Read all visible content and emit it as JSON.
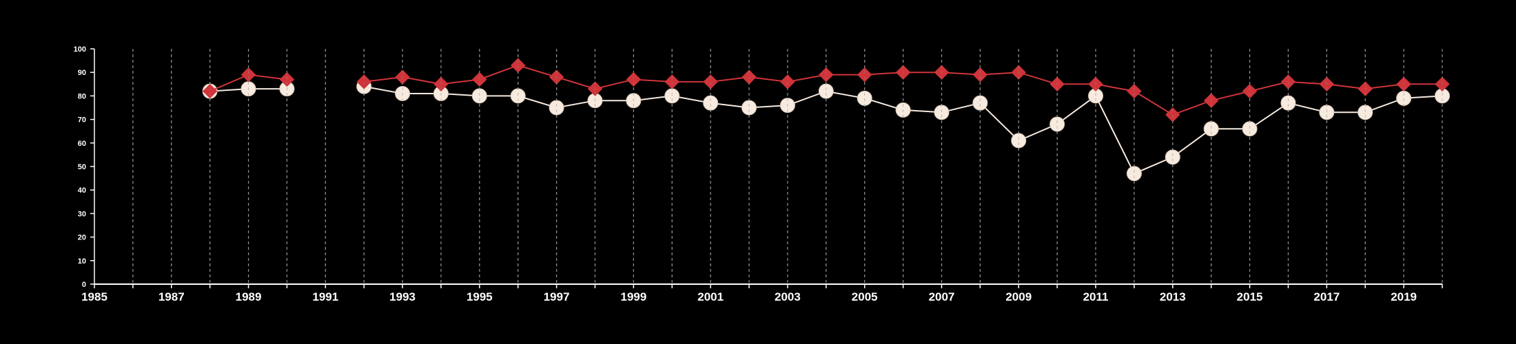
{
  "chart_data": {
    "type": "line",
    "title": "",
    "xlabel": "",
    "ylabel": "",
    "xlim": [
      1985,
      2020
    ],
    "ylim": [
      0,
      100
    ],
    "x_ticks": [
      "1985",
      "1987",
      "1989",
      "1991",
      "1993",
      "1995",
      "1997",
      "1999",
      "2001",
      "2003",
      "2005",
      "2007",
      "2009",
      "2011",
      "2013",
      "2015",
      "2017",
      "2019"
    ],
    "y_ticks": [
      "0",
      "10",
      "20",
      "30",
      "40",
      "50",
      "60",
      "70",
      "80",
      "90",
      "100"
    ],
    "grid": "vertical dashed lines at each year",
    "background": "#000000",
    "series": [
      {
        "color": "#d0343a",
        "marker": "diamond",
        "points": [
          [
            1988,
            82
          ],
          [
            1989,
            89
          ],
          [
            1990,
            87
          ],
          [
            1992,
            86
          ],
          [
            1993,
            88
          ],
          [
            1994,
            85
          ],
          [
            1995,
            87
          ],
          [
            1996,
            93
          ],
          [
            1997,
            88
          ],
          [
            1998,
            83
          ],
          [
            1999,
            87
          ],
          [
            2000,
            86
          ],
          [
            2001,
            86
          ],
          [
            2002,
            88
          ],
          [
            2003,
            86
          ],
          [
            2004,
            89
          ],
          [
            2005,
            89
          ],
          [
            2006,
            90
          ],
          [
            2007,
            90
          ],
          [
            2008,
            89
          ],
          [
            2009,
            90
          ],
          [
            2010,
            85
          ],
          [
            2011,
            85
          ],
          [
            2012,
            82
          ],
          [
            2013,
            72
          ],
          [
            2014,
            78
          ],
          [
            2015,
            82
          ],
          [
            2016,
            86
          ],
          [
            2017,
            85
          ],
          [
            2018,
            83
          ],
          [
            2019,
            85
          ],
          [
            2020,
            85
          ]
        ]
      },
      {
        "color": "#f7eadf",
        "marker": "circle",
        "points": [
          [
            1988,
            82
          ],
          [
            1989,
            83
          ],
          [
            1990,
            83
          ],
          [
            1992,
            84
          ],
          [
            1993,
            81
          ],
          [
            1994,
            81
          ],
          [
            1995,
            80
          ],
          [
            1996,
            80
          ],
          [
            1997,
            75
          ],
          [
            1998,
            78
          ],
          [
            1999,
            78
          ],
          [
            2000,
            80
          ],
          [
            2001,
            77
          ],
          [
            2002,
            75
          ],
          [
            2003,
            76
          ],
          [
            2004,
            82
          ],
          [
            2005,
            79
          ],
          [
            2006,
            74
          ],
          [
            2007,
            73
          ],
          [
            2008,
            77
          ],
          [
            2009,
            61
          ],
          [
            2010,
            68
          ],
          [
            2011,
            80
          ],
          [
            2012,
            47
          ],
          [
            2013,
            54
          ],
          [
            2014,
            66
          ],
          [
            2015,
            66
          ],
          [
            2016,
            77
          ],
          [
            2017,
            73
          ],
          [
            2018,
            73
          ],
          [
            2019,
            79
          ],
          [
            2020,
            80
          ]
        ]
      }
    ]
  }
}
